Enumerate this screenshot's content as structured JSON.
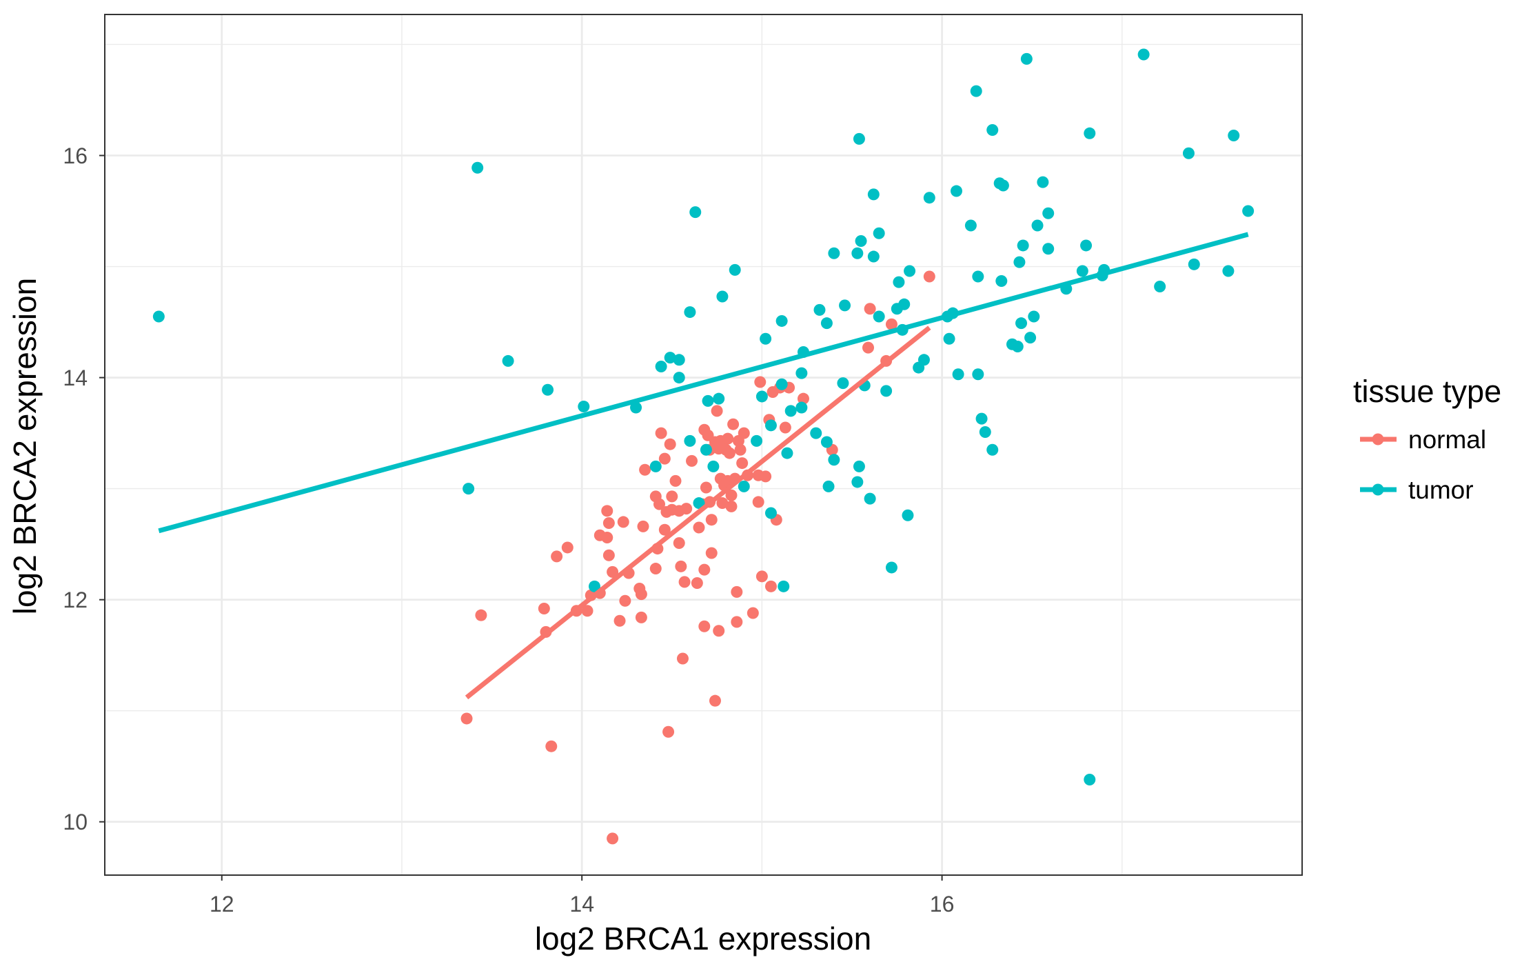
{
  "chart_data": {
    "type": "scatter",
    "xlabel": "log2 BRCA1 expression",
    "ylabel": "log2 BRCA2 expression",
    "xlim": [
      11.35,
      18.0
    ],
    "ylim": [
      9.52,
      17.27
    ],
    "xticks": [
      12,
      14,
      16
    ],
    "yticks": [
      10,
      12,
      14,
      16
    ],
    "grid": true,
    "legend": {
      "title": "tissue type",
      "position": "right"
    },
    "series": [
      {
        "name": "normal",
        "color": "#F8766D",
        "points": [
          [
            13.36,
            10.93
          ],
          [
            13.44,
            11.86
          ],
          [
            13.79,
            11.92
          ],
          [
            13.8,
            11.71
          ],
          [
            13.83,
            10.68
          ],
          [
            13.86,
            12.39
          ],
          [
            13.92,
            12.47
          ],
          [
            13.97,
            11.9
          ],
          [
            14.03,
            11.9
          ],
          [
            14.05,
            12.04
          ],
          [
            14.1,
            12.58
          ],
          [
            14.1,
            12.06
          ],
          [
            14.14,
            12.56
          ],
          [
            14.14,
            12.8
          ],
          [
            14.15,
            12.4
          ],
          [
            14.15,
            12.69
          ],
          [
            14.17,
            9.85
          ],
          [
            14.17,
            12.25
          ],
          [
            14.21,
            11.81
          ],
          [
            14.23,
            12.7
          ],
          [
            14.24,
            11.99
          ],
          [
            14.26,
            12.24
          ],
          [
            14.32,
            12.1
          ],
          [
            14.33,
            11.84
          ],
          [
            14.33,
            12.05
          ],
          [
            14.34,
            12.66
          ],
          [
            14.35,
            13.17
          ],
          [
            14.41,
            12.93
          ],
          [
            14.41,
            12.28
          ],
          [
            14.43,
            12.86
          ],
          [
            14.42,
            12.46
          ],
          [
            14.44,
            13.5
          ],
          [
            14.46,
            12.63
          ],
          [
            14.46,
            13.27
          ],
          [
            14.47,
            12.79
          ],
          [
            14.48,
            10.81
          ],
          [
            14.49,
            13.4
          ],
          [
            14.5,
            12.93
          ],
          [
            14.5,
            12.81
          ],
          [
            14.52,
            13.07
          ],
          [
            14.54,
            12.8
          ],
          [
            14.54,
            12.51
          ],
          [
            14.55,
            12.3
          ],
          [
            14.56,
            11.47
          ],
          [
            14.57,
            12.16
          ],
          [
            14.58,
            12.82
          ],
          [
            14.61,
            13.25
          ],
          [
            14.64,
            12.15
          ],
          [
            14.65,
            12.65
          ],
          [
            14.67,
            12.86
          ],
          [
            14.68,
            13.53
          ],
          [
            14.68,
            12.27
          ],
          [
            14.68,
            11.76
          ],
          [
            14.69,
            13.01
          ],
          [
            14.7,
            13.48
          ],
          [
            14.71,
            12.88
          ],
          [
            14.71,
            13.35
          ],
          [
            14.72,
            12.72
          ],
          [
            14.72,
            12.42
          ],
          [
            14.74,
            11.09
          ],
          [
            14.74,
            13.42
          ],
          [
            14.75,
            13.7
          ],
          [
            14.76,
            11.72
          ],
          [
            14.76,
            13.36
          ],
          [
            14.77,
            13.09
          ],
          [
            14.77,
            13.43
          ],
          [
            14.78,
            12.87
          ],
          [
            14.79,
            13.03
          ],
          [
            14.8,
            13.35
          ],
          [
            14.81,
            13.07
          ],
          [
            14.81,
            13.45
          ],
          [
            14.82,
            13.32
          ],
          [
            14.83,
            12.94
          ],
          [
            14.83,
            12.84
          ],
          [
            14.84,
            13.58
          ],
          [
            14.85,
            13.09
          ],
          [
            14.86,
            12.07
          ],
          [
            14.86,
            11.8
          ],
          [
            14.87,
            13.43
          ],
          [
            14.88,
            13.35
          ],
          [
            14.89,
            13.23
          ],
          [
            14.9,
            13.5
          ],
          [
            14.92,
            13.12
          ],
          [
            14.95,
            11.88
          ],
          [
            14.98,
            12.88
          ],
          [
            14.99,
            13.96
          ],
          [
            14.98,
            13.12
          ],
          [
            15.0,
            12.21
          ],
          [
            15.02,
            13.11
          ],
          [
            15.04,
            13.62
          ],
          [
            15.05,
            12.12
          ],
          [
            15.06,
            13.87
          ],
          [
            15.08,
            12.72
          ],
          [
            15.1,
            13.91
          ],
          [
            15.13,
            13.55
          ],
          [
            15.15,
            13.91
          ],
          [
            15.23,
            13.81
          ],
          [
            15.39,
            13.35
          ],
          [
            15.59,
            14.27
          ],
          [
            15.6,
            14.62
          ],
          [
            15.69,
            14.15
          ],
          [
            15.72,
            14.48
          ],
          [
            15.93,
            14.91
          ]
        ],
        "fit": {
          "x": [
            13.36,
            15.93
          ],
          "y": [
            11.12,
            14.45
          ]
        }
      },
      {
        "name": "tumor",
        "color": "#00BFC4",
        "points": [
          [
            11.65,
            14.55
          ],
          [
            13.42,
            15.89
          ],
          [
            13.59,
            14.15
          ],
          [
            13.81,
            13.89
          ],
          [
            14.01,
            13.74
          ],
          [
            13.37,
            13.0
          ],
          [
            14.3,
            13.73
          ],
          [
            14.07,
            12.12
          ],
          [
            14.41,
            13.2
          ],
          [
            14.44,
            14.1
          ],
          [
            14.49,
            14.18
          ],
          [
            14.54,
            14.16
          ],
          [
            14.54,
            14.0
          ],
          [
            14.63,
            15.49
          ],
          [
            14.6,
            14.59
          ],
          [
            14.6,
            13.43
          ],
          [
            14.65,
            12.87
          ],
          [
            14.7,
            13.79
          ],
          [
            14.69,
            13.35
          ],
          [
            14.78,
            14.73
          ],
          [
            14.85,
            14.97
          ],
          [
            14.76,
            13.81
          ],
          [
            14.73,
            13.2
          ],
          [
            14.9,
            13.02
          ],
          [
            14.97,
            13.43
          ],
          [
            15.0,
            13.83
          ],
          [
            15.02,
            14.35
          ],
          [
            15.05,
            13.57
          ],
          [
            15.05,
            12.78
          ],
          [
            15.11,
            14.51
          ],
          [
            15.11,
            13.94
          ],
          [
            15.12,
            12.12
          ],
          [
            15.14,
            13.32
          ],
          [
            15.16,
            13.7
          ],
          [
            15.22,
            14.04
          ],
          [
            15.23,
            14.23
          ],
          [
            15.22,
            13.73
          ],
          [
            15.3,
            13.5
          ],
          [
            15.32,
            14.61
          ],
          [
            15.36,
            13.42
          ],
          [
            15.36,
            14.49
          ],
          [
            15.37,
            13.02
          ],
          [
            15.4,
            15.12
          ],
          [
            15.4,
            13.26
          ],
          [
            15.45,
            13.95
          ],
          [
            15.46,
            14.65
          ],
          [
            15.53,
            15.12
          ],
          [
            15.53,
            13.06
          ],
          [
            15.54,
            13.2
          ],
          [
            15.54,
            16.15
          ],
          [
            15.55,
            15.23
          ],
          [
            15.57,
            13.93
          ],
          [
            15.6,
            12.91
          ],
          [
            15.62,
            15.09
          ],
          [
            15.62,
            15.65
          ],
          [
            15.65,
            14.55
          ],
          [
            15.65,
            15.3
          ],
          [
            15.69,
            13.88
          ],
          [
            15.72,
            12.29
          ],
          [
            15.75,
            14.62
          ],
          [
            15.76,
            14.86
          ],
          [
            15.78,
            14.43
          ],
          [
            15.79,
            14.66
          ],
          [
            15.81,
            12.76
          ],
          [
            15.82,
            14.96
          ],
          [
            15.87,
            14.09
          ],
          [
            15.9,
            14.16
          ],
          [
            15.93,
            15.62
          ],
          [
            16.03,
            14.55
          ],
          [
            16.04,
            14.35
          ],
          [
            16.06,
            14.58
          ],
          [
            16.08,
            15.68
          ],
          [
            16.09,
            14.03
          ],
          [
            16.16,
            15.37
          ],
          [
            16.19,
            16.58
          ],
          [
            16.2,
            14.03
          ],
          [
            16.2,
            14.91
          ],
          [
            16.22,
            13.63
          ],
          [
            16.24,
            13.51
          ],
          [
            16.28,
            16.23
          ],
          [
            16.28,
            13.35
          ],
          [
            16.32,
            15.75
          ],
          [
            16.33,
            14.87
          ],
          [
            16.34,
            15.73
          ],
          [
            16.39,
            14.3
          ],
          [
            16.42,
            14.28
          ],
          [
            16.43,
            15.04
          ],
          [
            16.44,
            14.49
          ],
          [
            16.45,
            15.19
          ],
          [
            16.47,
            16.87
          ],
          [
            16.49,
            14.36
          ],
          [
            16.51,
            14.55
          ],
          [
            16.53,
            15.37
          ],
          [
            16.56,
            15.76
          ],
          [
            16.59,
            15.48
          ],
          [
            16.59,
            15.16
          ],
          [
            16.69,
            14.8
          ],
          [
            16.78,
            14.96
          ],
          [
            16.8,
            15.19
          ],
          [
            16.82,
            16.2
          ],
          [
            16.82,
            10.38
          ],
          [
            16.89,
            14.92
          ],
          [
            16.9,
            14.97
          ],
          [
            17.12,
            16.91
          ],
          [
            17.21,
            14.82
          ],
          [
            17.37,
            16.02
          ],
          [
            17.4,
            15.02
          ],
          [
            17.59,
            14.96
          ],
          [
            17.62,
            16.18
          ],
          [
            17.7,
            15.5
          ]
        ],
        "fit": {
          "x": [
            11.65,
            17.7
          ],
          "y": [
            12.62,
            15.29
          ]
        }
      }
    ]
  }
}
